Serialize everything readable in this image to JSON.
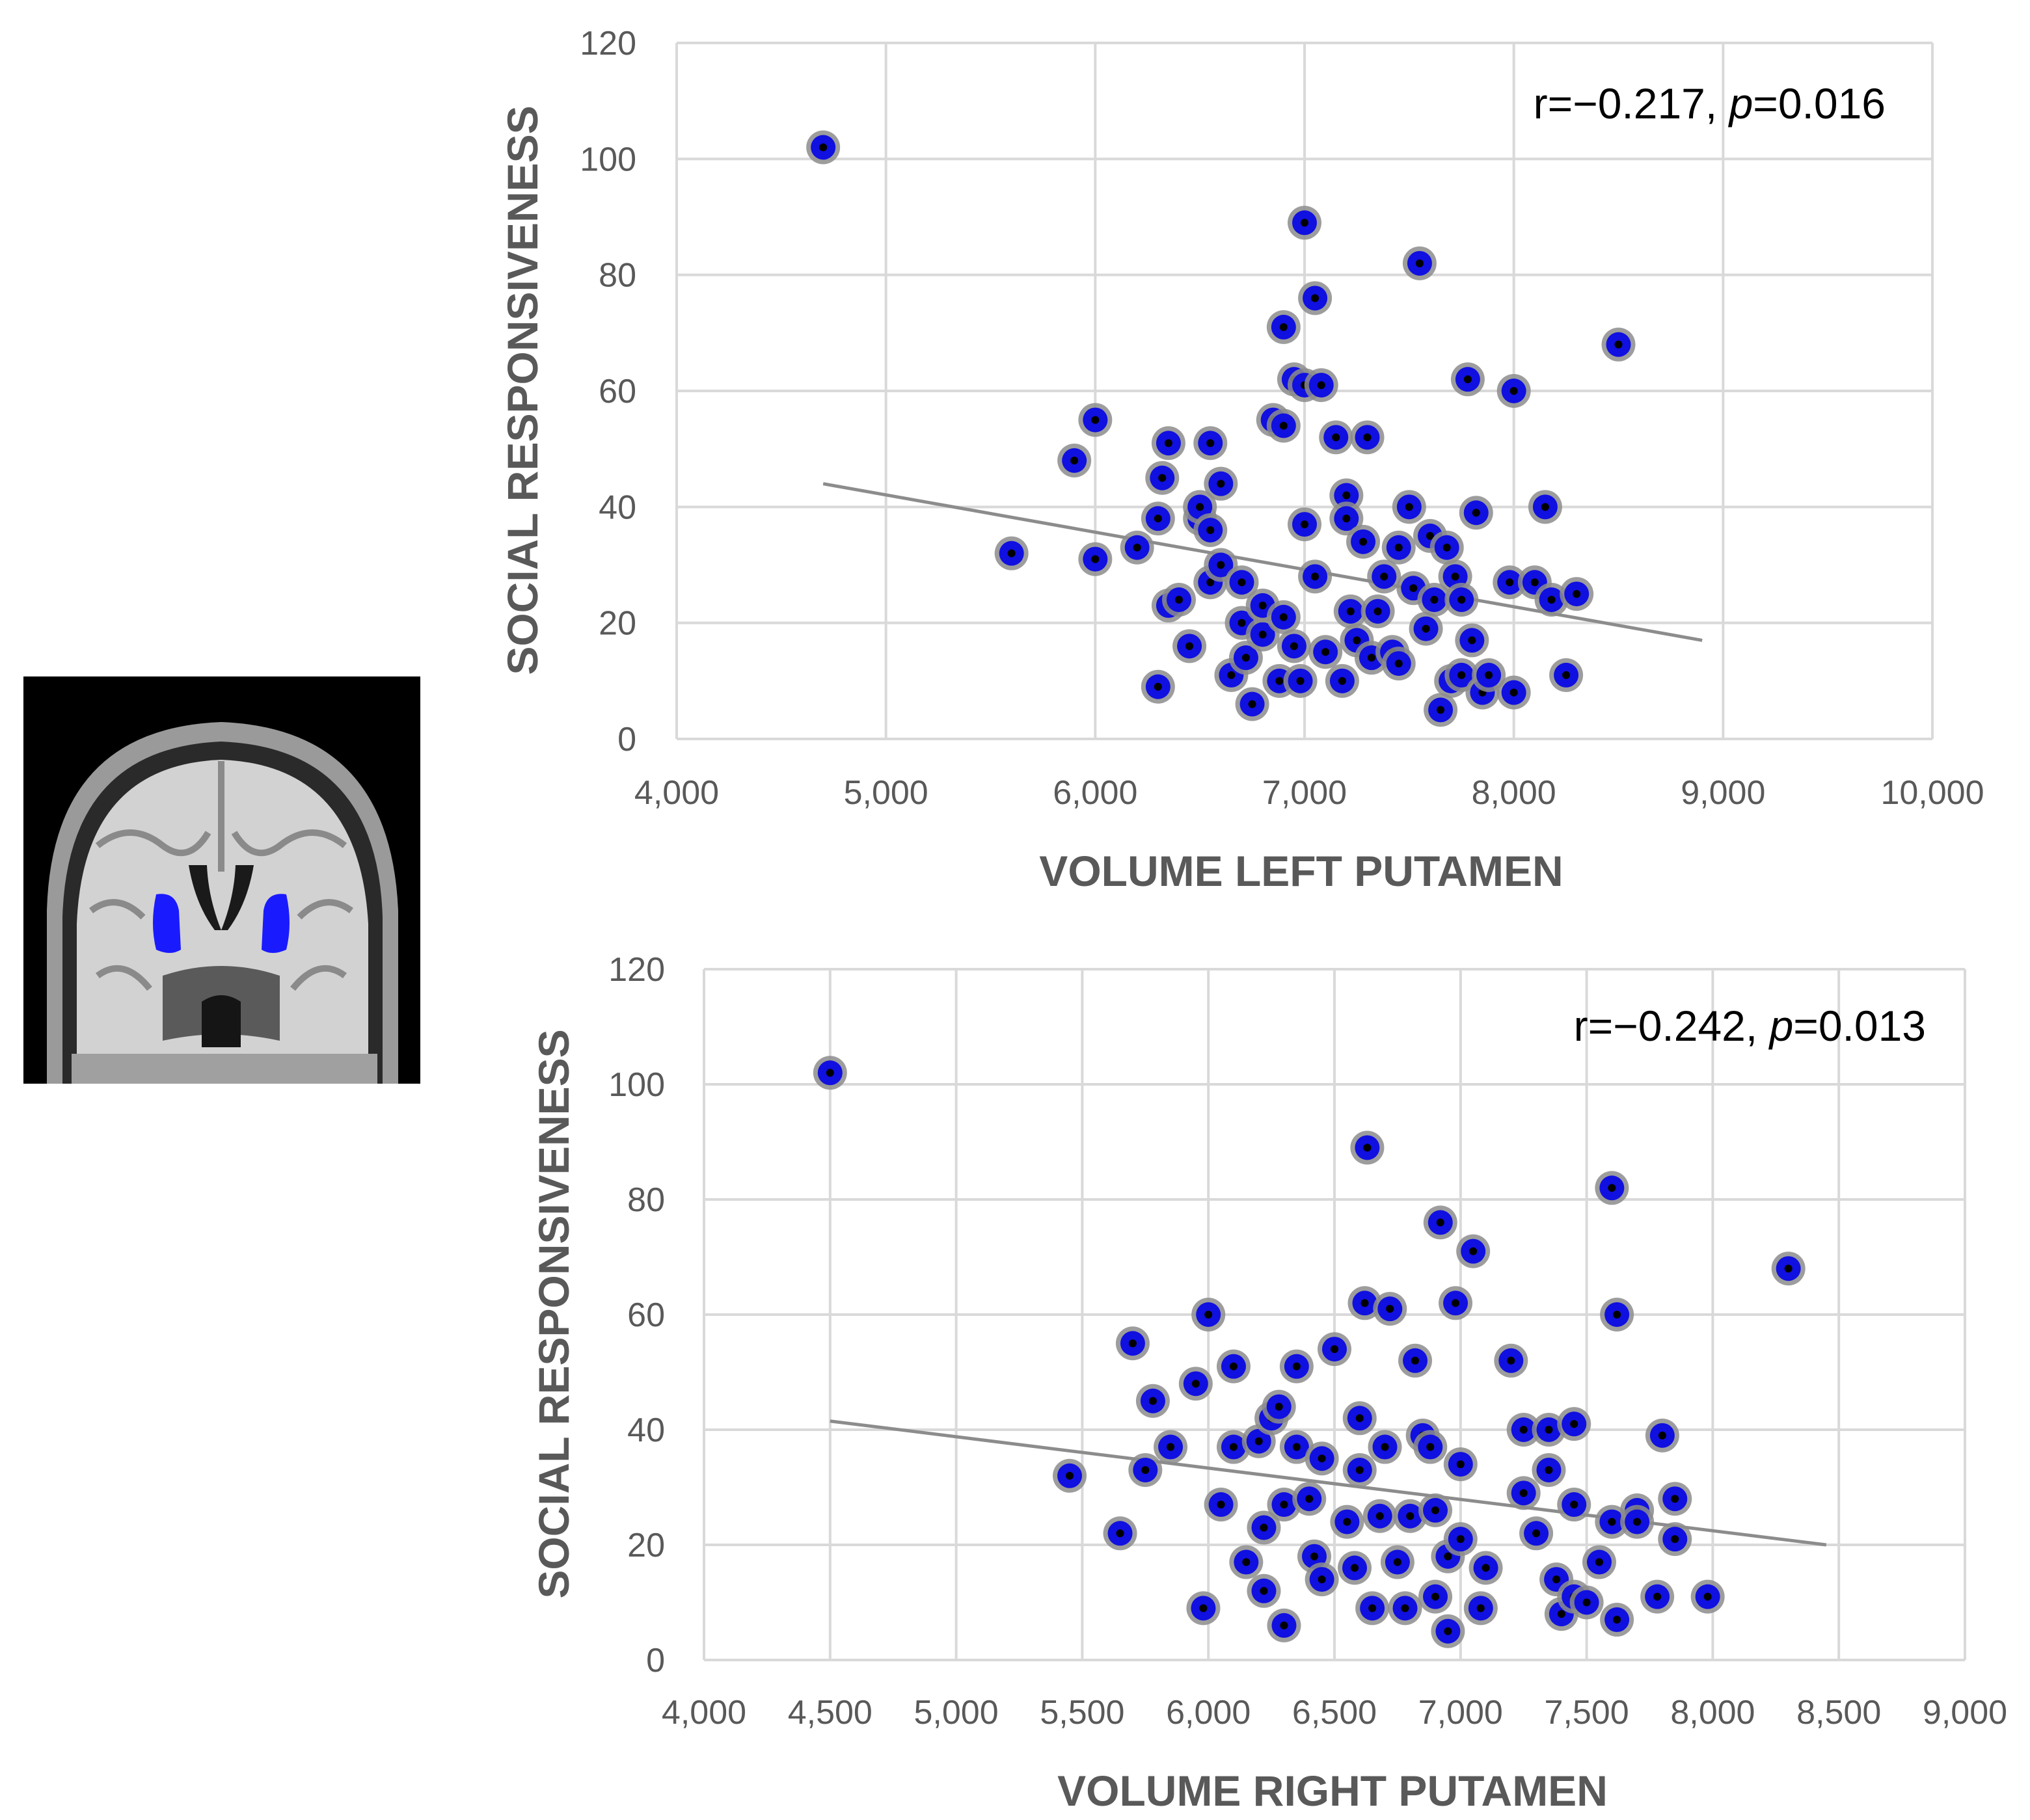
{
  "chart_data": [
    {
      "type": "scatter",
      "xlabel": "VOLUME LEFT PUTAMEN",
      "ylabel": "SOCIAL RESPONSIVENESS",
      "annotation": {
        "r": "r=−0.217, ",
        "p_label": "p",
        "p_value": "=0.016"
      },
      "xlim": [
        4000,
        10000
      ],
      "ylim": [
        0,
        120
      ],
      "x_ticks": [
        "4,000",
        "5,000",
        "6,000",
        "7,000",
        "8,000",
        "9,000",
        "10,000"
      ],
      "y_ticks": [
        "0",
        "20",
        "40",
        "60",
        "80",
        "100",
        "120"
      ],
      "grid": true,
      "marker_color": "#1010e0",
      "trendline": {
        "x": [
          4700,
          8900
        ],
        "y": [
          44,
          17
        ]
      },
      "points": [
        [
          4700,
          102
        ],
        [
          5600,
          32
        ],
        [
          5900,
          48
        ],
        [
          6000,
          55
        ],
        [
          6000,
          31
        ],
        [
          6200,
          33
        ],
        [
          6300,
          9
        ],
        [
          6300,
          38
        ],
        [
          6320,
          45
        ],
        [
          6350,
          51
        ],
        [
          6350,
          23
        ],
        [
          6400,
          24
        ],
        [
          6450,
          16
        ],
        [
          6500,
          38
        ],
        [
          6500,
          40
        ],
        [
          6550,
          51
        ],
        [
          6550,
          36
        ],
        [
          6550,
          27
        ],
        [
          6600,
          44
        ],
        [
          6600,
          30
        ],
        [
          6650,
          11
        ],
        [
          6700,
          27
        ],
        [
          6700,
          20
        ],
        [
          6720,
          14
        ],
        [
          6750,
          6
        ],
        [
          6800,
          18
        ],
        [
          6800,
          23
        ],
        [
          6850,
          55
        ],
        [
          6880,
          10
        ],
        [
          6900,
          71
        ],
        [
          6900,
          54
        ],
        [
          6900,
          21
        ],
        [
          6950,
          16
        ],
        [
          6950,
          62
        ],
        [
          6980,
          10
        ],
        [
          7000,
          89
        ],
        [
          7000,
          37
        ],
        [
          7000,
          61
        ],
        [
          7050,
          76
        ],
        [
          7050,
          28
        ],
        [
          7080,
          61
        ],
        [
          7100,
          15
        ],
        [
          7150,
          52
        ],
        [
          7180,
          10
        ],
        [
          7200,
          42
        ],
        [
          7200,
          38
        ],
        [
          7220,
          22
        ],
        [
          7250,
          17
        ],
        [
          7280,
          34
        ],
        [
          7300,
          52
        ],
        [
          7320,
          14
        ],
        [
          7350,
          22
        ],
        [
          7380,
          28
        ],
        [
          7420,
          15
        ],
        [
          7450,
          33
        ],
        [
          7450,
          13
        ],
        [
          7500,
          40
        ],
        [
          7520,
          26
        ],
        [
          7550,
          82
        ],
        [
          7580,
          19
        ],
        [
          7600,
          35
        ],
        [
          7620,
          24
        ],
        [
          7650,
          5
        ],
        [
          7680,
          33
        ],
        [
          7700,
          10
        ],
        [
          7720,
          28
        ],
        [
          7750,
          24
        ],
        [
          7750,
          11
        ],
        [
          7780,
          62
        ],
        [
          7800,
          17
        ],
        [
          7820,
          39
        ],
        [
          7850,
          8
        ],
        [
          7880,
          11
        ],
        [
          7980,
          27
        ],
        [
          8000,
          60
        ],
        [
          8000,
          8
        ],
        [
          8100,
          27
        ],
        [
          8150,
          40
        ],
        [
          8180,
          24
        ],
        [
          8250,
          11
        ],
        [
          8300,
          25
        ],
        [
          8500,
          68
        ]
      ]
    },
    {
      "type": "scatter",
      "xlabel": "VOLUME RIGHT PUTAMEN",
      "ylabel": "SOCIAL RESPONSIVENESS",
      "annotation": {
        "r": "r=−0.242, ",
        "p_label": "p",
        "p_value": "=0.013"
      },
      "xlim": [
        4000,
        9000
      ],
      "ylim": [
        0,
        120
      ],
      "x_ticks": [
        "4,000",
        "4,500",
        "5,000",
        "5,500",
        "6,000",
        "6,500",
        "7,000",
        "7,500",
        "8,000",
        "8,500",
        "9,000"
      ],
      "y_ticks": [
        "0",
        "20",
        "40",
        "60",
        "80",
        "100",
        "120"
      ],
      "grid": true,
      "marker_color": "#1010e0",
      "trendline": {
        "x": [
          4500,
          8450
        ],
        "y": [
          41.5,
          20
        ]
      },
      "points": [
        [
          4500,
          102
        ],
        [
          5450,
          32
        ],
        [
          5650,
          22
        ],
        [
          5700,
          55
        ],
        [
          5750,
          33
        ],
        [
          5780,
          45
        ],
        [
          5850,
          37
        ],
        [
          5950,
          48
        ],
        [
          5980,
          9
        ],
        [
          6000,
          60
        ],
        [
          6050,
          27
        ],
        [
          6100,
          37
        ],
        [
          6100,
          51
        ],
        [
          6150,
          17
        ],
        [
          6200,
          38
        ],
        [
          6220,
          12
        ],
        [
          6220,
          23
        ],
        [
          6250,
          42
        ],
        [
          6280,
          44
        ],
        [
          6300,
          6
        ],
        [
          6300,
          27
        ],
        [
          6350,
          51
        ],
        [
          6350,
          37
        ],
        [
          6400,
          28
        ],
        [
          6420,
          18
        ],
        [
          6450,
          14
        ],
        [
          6450,
          35
        ],
        [
          6500,
          54
        ],
        [
          6550,
          24
        ],
        [
          6580,
          16
        ],
        [
          6600,
          42
        ],
        [
          6600,
          33
        ],
        [
          6620,
          62
        ],
        [
          6630,
          89
        ],
        [
          6650,
          9
        ],
        [
          6680,
          25
        ],
        [
          6700,
          37
        ],
        [
          6720,
          61
        ],
        [
          6750,
          17
        ],
        [
          6780,
          9
        ],
        [
          6800,
          25
        ],
        [
          6820,
          52
        ],
        [
          6850,
          39
        ],
        [
          6880,
          37
        ],
        [
          6900,
          11
        ],
        [
          6900,
          26
        ],
        [
          6920,
          76
        ],
        [
          6950,
          5
        ],
        [
          6950,
          18
        ],
        [
          6980,
          62
        ],
        [
          7000,
          34
        ],
        [
          7000,
          21
        ],
        [
          7050,
          71
        ],
        [
          7080,
          9
        ],
        [
          7100,
          16
        ],
        [
          7200,
          52
        ],
        [
          7250,
          40
        ],
        [
          7250,
          29
        ],
        [
          7300,
          22
        ],
        [
          7350,
          40
        ],
        [
          7350,
          33
        ],
        [
          7380,
          14
        ],
        [
          7400,
          8
        ],
        [
          7450,
          41
        ],
        [
          7450,
          27
        ],
        [
          7450,
          11
        ],
        [
          7500,
          10
        ],
        [
          7550,
          17
        ],
        [
          7600,
          24
        ],
        [
          7620,
          7
        ],
        [
          7600,
          82
        ],
        [
          7620,
          60
        ],
        [
          7700,
          26
        ],
        [
          7700,
          24
        ],
        [
          7780,
          11
        ],
        [
          7800,
          39
        ],
        [
          7850,
          21
        ],
        [
          7850,
          28
        ],
        [
          7980,
          11
        ],
        [
          8300,
          68
        ]
      ]
    }
  ],
  "inset_image": {
    "kind": "brain coronal MRI slice",
    "highlight_color": "#1a1aff"
  }
}
